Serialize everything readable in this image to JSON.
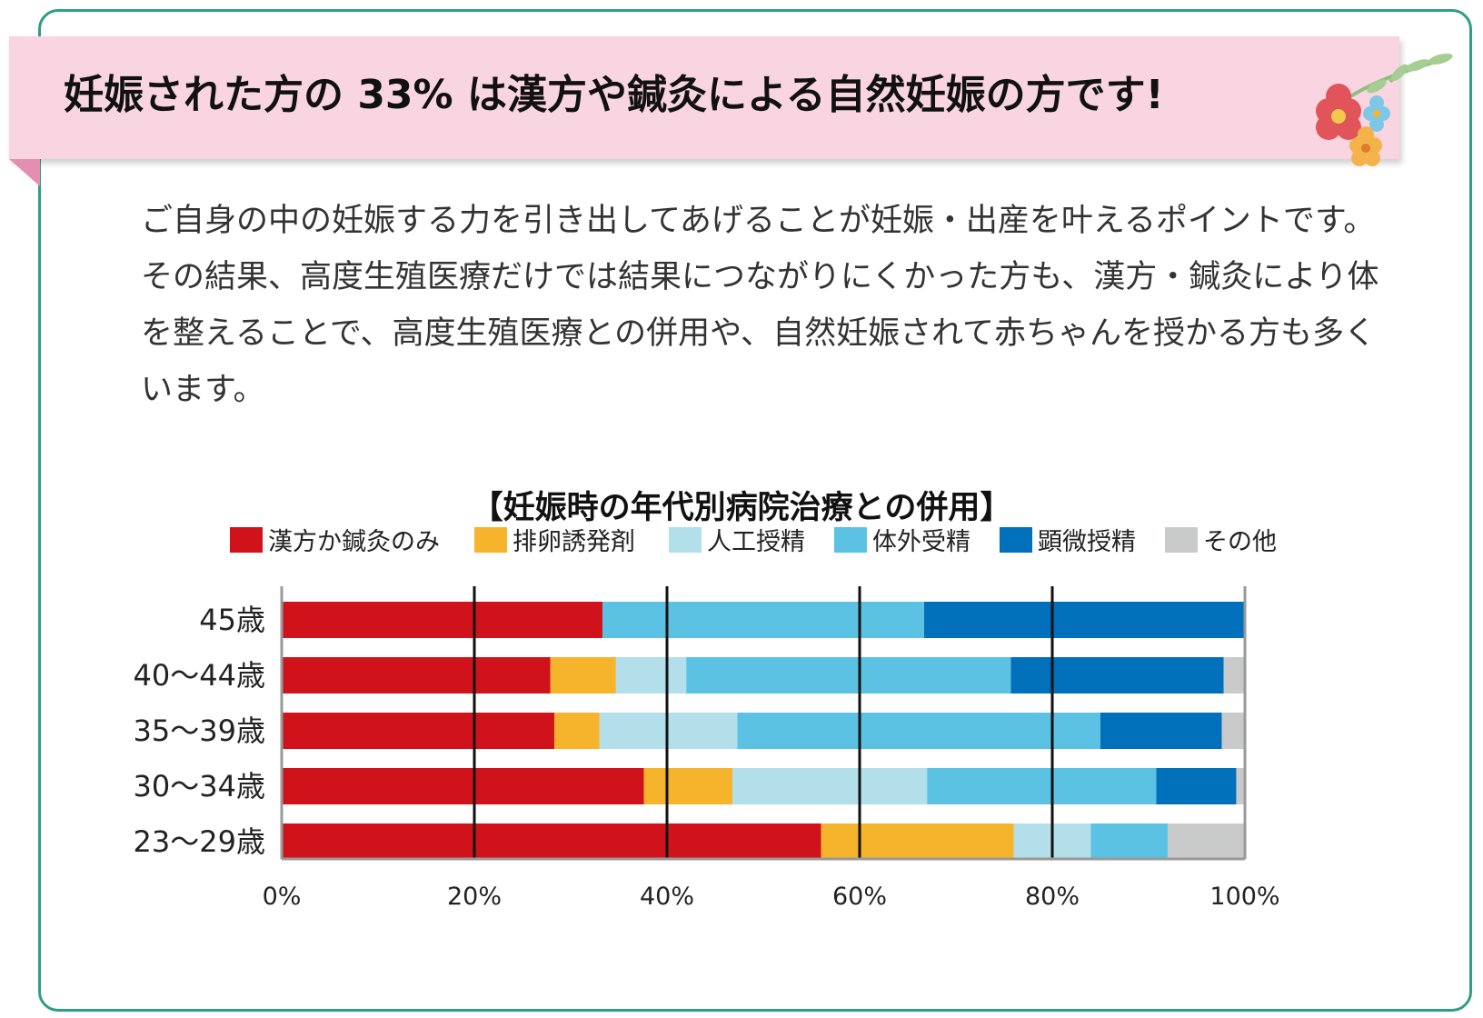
{
  "banner": {
    "title": "妊娠された方の 33% は漢方や鍼灸による自然妊娠の方です!"
  },
  "body": {
    "paragraph": "ご自身の中の妊娠する力を引き出してあげることが妊娠・出産を叶えるポイントです。その結果、高度生殖医療だけでは結果につながりにくかった方も、漢方・鍼灸により体を整えることで、高度生殖医療との併用や、自然妊娠されて赤ちゃんを授かる方も多くいます。"
  },
  "colors": {
    "frame": "#2e9e85",
    "banner": "#f8d5e1",
    "banner_fold": "#e38fb2"
  },
  "chart_data": {
    "type": "bar",
    "orientation": "horizontal",
    "stacked": true,
    "title": "【妊娠時の年代別病院治療との併用】",
    "categories": [
      "45歳",
      "40〜44歳",
      "35〜39歳",
      "30〜34歳",
      "23〜29歳"
    ],
    "series": [
      {
        "name": "漢方か鍼灸のみ",
        "color": "#d0121b",
        "values": [
          33.3,
          27.9,
          28.3,
          37.6,
          56.0
        ]
      },
      {
        "name": "排卵誘発剤",
        "color": "#f6b42c",
        "values": [
          0,
          6.8,
          4.7,
          9.2,
          20.0
        ]
      },
      {
        "name": "人工授精",
        "color": "#b2dfea",
        "values": [
          0,
          7.3,
          14.3,
          20.2,
          8.0
        ]
      },
      {
        "name": "体外受精",
        "color": "#5bc2e3",
        "values": [
          33.4,
          33.7,
          37.7,
          23.8,
          8.0
        ]
      },
      {
        "name": "顕微授精",
        "color": "#0070ba",
        "values": [
          33.3,
          22.1,
          12.6,
          8.3,
          0
        ]
      },
      {
        "name": "その他",
        "color": "#c9caca",
        "values": [
          0,
          2.2,
          2.4,
          0.9,
          8.0
        ]
      }
    ],
    "xlim": [
      0,
      100
    ],
    "xticks": [
      "0%",
      "20%",
      "40%",
      "60%",
      "80%",
      "100%"
    ],
    "legend_position": "top",
    "grid": "vertical lines at 20% intervals"
  }
}
